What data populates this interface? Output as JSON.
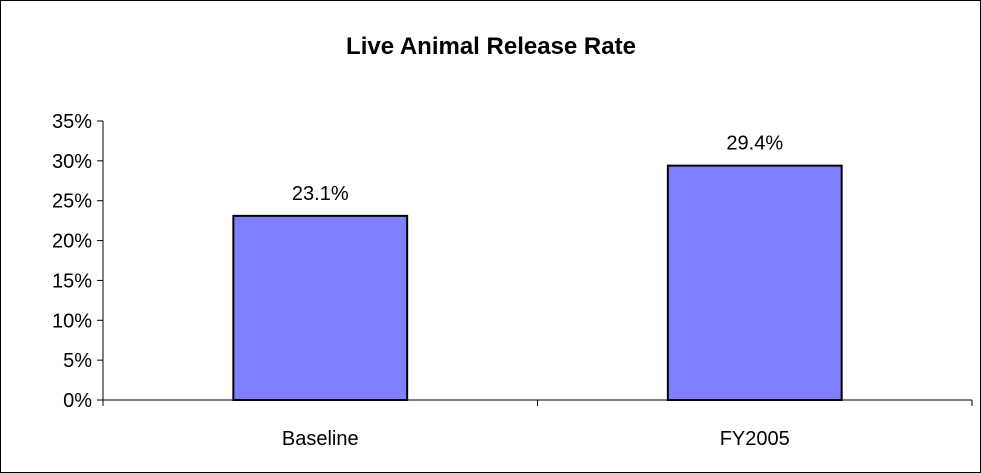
{
  "chart_data": {
    "type": "bar",
    "title": "Live Animal Release Rate",
    "xlabel": "",
    "ylabel": "",
    "categories": [
      "Baseline",
      "FY2005"
    ],
    "values": [
      23.1,
      29.4
    ],
    "data_labels": [
      "23.1%",
      "29.4%"
    ],
    "ylim": [
      0,
      35
    ],
    "yticks": [
      0,
      5,
      10,
      15,
      20,
      25,
      30,
      35
    ],
    "ytick_labels": [
      "0%",
      "5%",
      "10%",
      "15%",
      "20%",
      "25%",
      "30%",
      "35%"
    ],
    "grid": false,
    "legend": "none",
    "colors": {
      "bar_fill": "#8080ff",
      "bar_stroke": "#000000",
      "axis": "#000000",
      "background": "#ffffff"
    }
  }
}
